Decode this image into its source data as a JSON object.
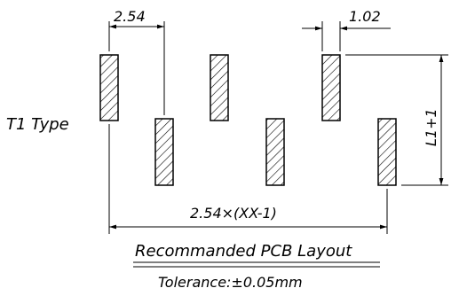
{
  "diagram": {
    "type_label": "T1 Type",
    "dims": {
      "pitch": "2.54",
      "pad_width": "1.02",
      "pad_length": "L1+1",
      "span": "2.54×(XX-1)"
    },
    "caption": "Recommanded PCB Layout",
    "tolerance": "Tolerance:±0.05mm",
    "colors": {
      "line": "#000000",
      "background": "#ffffff"
    }
  }
}
